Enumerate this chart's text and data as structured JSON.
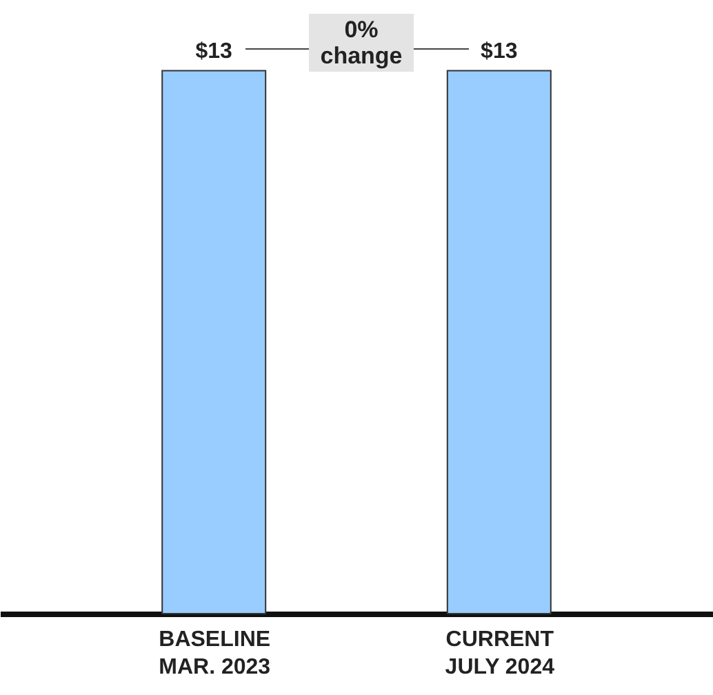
{
  "chart_data": {
    "type": "bar",
    "categories": [
      "BASELINE\nMAR. 2023",
      "CURRENT\nJULY 2024"
    ],
    "values": [
      13,
      13
    ],
    "value_labels": [
      "$13",
      "$13"
    ],
    "color": "#99ccff",
    "annotations": [
      "0% change"
    ]
  }
}
